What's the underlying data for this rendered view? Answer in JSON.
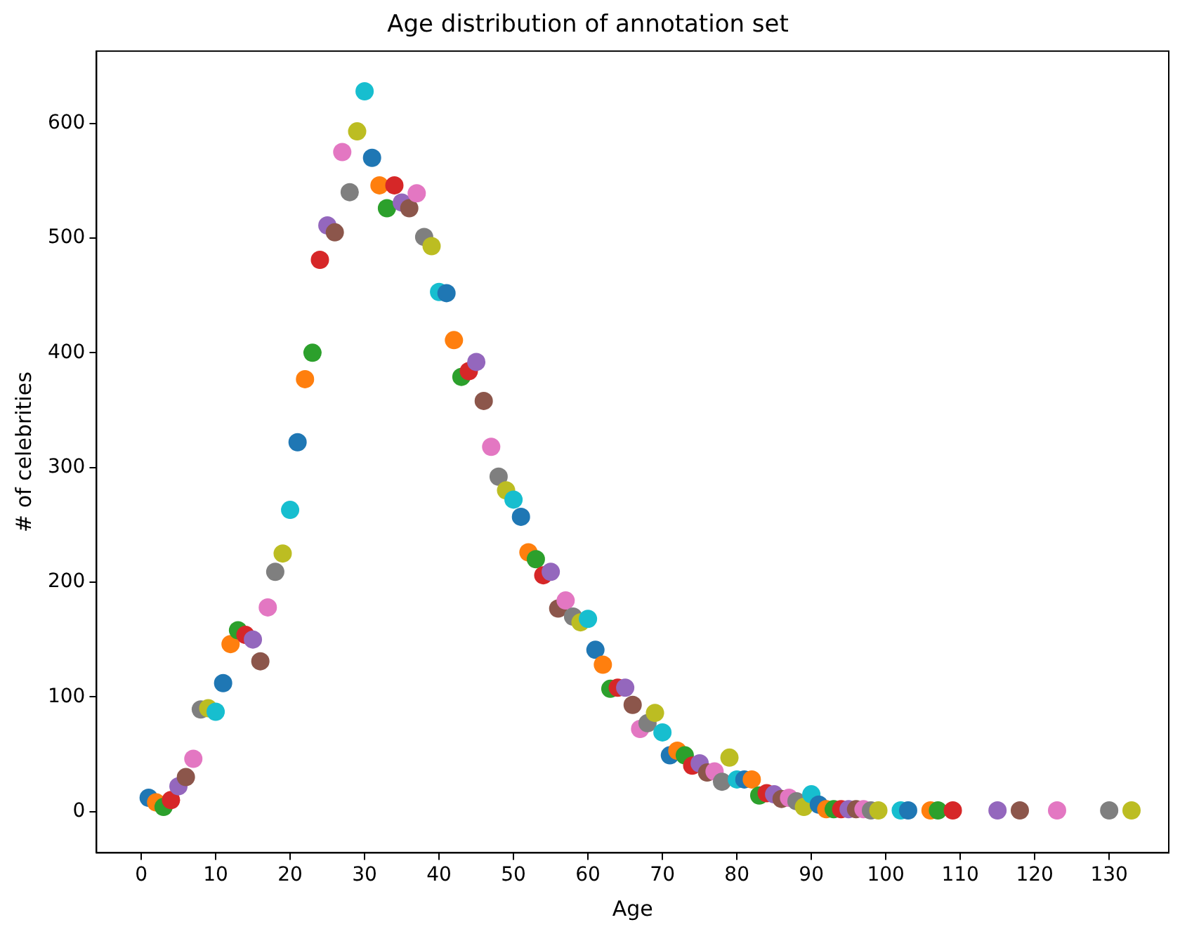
{
  "chart_data": {
    "type": "scatter",
    "title": "Age distribution of annotation set",
    "xlabel": "Age",
    "ylabel": "# of celebrities",
    "x": [
      1,
      2,
      3,
      4,
      5,
      6,
      7,
      8,
      9,
      10,
      11,
      12,
      13,
      14,
      15,
      16,
      17,
      18,
      19,
      20,
      21,
      22,
      23,
      24,
      25,
      26,
      27,
      28,
      29,
      30,
      31,
      32,
      33,
      34,
      35,
      36,
      37,
      38,
      39,
      40,
      41,
      42,
      43,
      44,
      45,
      46,
      47,
      48,
      49,
      50,
      51,
      52,
      53,
      54,
      55,
      56,
      57,
      58,
      59,
      60,
      61,
      62,
      63,
      64,
      65,
      66,
      67,
      68,
      69,
      70,
      71,
      72,
      73,
      74,
      75,
      76,
      77,
      78,
      79,
      80,
      81,
      82,
      83,
      84,
      85,
      86,
      87,
      88,
      89,
      90,
      91,
      92,
      93,
      94,
      95,
      96,
      97,
      98,
      99,
      102,
      103,
      106,
      107,
      109,
      115,
      118,
      123,
      130,
      133
    ],
    "values": [
      12,
      8,
      4,
      10,
      22,
      30,
      46,
      89,
      90,
      87,
      112,
      146,
      158,
      154,
      150,
      131,
      178,
      209,
      225,
      263,
      322,
      377,
      400,
      481,
      511,
      505,
      575,
      540,
      593,
      628,
      570,
      546,
      526,
      546,
      531,
      526,
      539,
      501,
      493,
      453,
      452,
      411,
      379,
      384,
      392,
      358,
      318,
      292,
      280,
      272,
      257,
      226,
      220,
      206,
      209,
      177,
      184,
      170,
      165,
      168,
      141,
      128,
      107,
      108,
      108,
      93,
      72,
      77,
      86,
      69,
      49,
      53,
      49,
      40,
      42,
      34,
      35,
      26,
      47,
      28,
      28,
      28,
      14,
      16,
      15,
      11,
      12,
      9,
      4,
      15,
      6,
      2,
      2,
      2,
      2,
      2,
      2,
      1,
      1,
      1,
      1,
      1,
      1,
      1,
      1,
      1,
      1,
      1,
      1
    ],
    "colors": [
      "#1f77b4",
      "#ff7f0e",
      "#2ca02c",
      "#d62728",
      "#9467bd",
      "#8c564b",
      "#e377c2",
      "#7f7f7f",
      "#bcbd22",
      "#17becf",
      "#1f77b4",
      "#ff7f0e",
      "#2ca02c",
      "#d62728",
      "#9467bd",
      "#8c564b",
      "#e377c2",
      "#7f7f7f",
      "#bcbd22",
      "#17becf",
      "#1f77b4",
      "#ff7f0e",
      "#2ca02c",
      "#d62728",
      "#9467bd",
      "#8c564b",
      "#e377c2",
      "#7f7f7f",
      "#bcbd22",
      "#17becf",
      "#1f77b4",
      "#ff7f0e",
      "#2ca02c",
      "#d62728",
      "#9467bd",
      "#8c564b",
      "#e377c2",
      "#7f7f7f",
      "#bcbd22",
      "#17becf",
      "#1f77b4",
      "#ff7f0e",
      "#2ca02c",
      "#d62728",
      "#9467bd",
      "#8c564b",
      "#e377c2",
      "#7f7f7f",
      "#bcbd22",
      "#17becf",
      "#1f77b4",
      "#ff7f0e",
      "#2ca02c",
      "#d62728",
      "#9467bd",
      "#8c564b",
      "#e377c2",
      "#7f7f7f",
      "#bcbd22",
      "#17becf",
      "#1f77b4",
      "#ff7f0e",
      "#2ca02c",
      "#d62728",
      "#9467bd",
      "#8c564b",
      "#e377c2",
      "#7f7f7f",
      "#bcbd22",
      "#17becf",
      "#1f77b4",
      "#ff7f0e",
      "#2ca02c",
      "#d62728",
      "#9467bd",
      "#8c564b",
      "#e377c2",
      "#7f7f7f",
      "#bcbd22",
      "#17becf",
      "#1f77b4",
      "#ff7f0e",
      "#2ca02c",
      "#d62728",
      "#9467bd",
      "#8c564b",
      "#e377c2",
      "#7f7f7f",
      "#bcbd22",
      "#17becf",
      "#1f77b4",
      "#ff7f0e",
      "#2ca02c",
      "#d62728",
      "#9467bd",
      "#8c564b",
      "#e377c2",
      "#7f7f7f",
      "#bcbd22",
      "#17becf",
      "#1f77b4",
      "#ff7f0e",
      "#2ca02c",
      "#d62728",
      "#9467bd",
      "#8c564b",
      "#e377c2",
      "#7f7f7f",
      "#bcbd22"
    ],
    "xlim": [
      -6,
      138
    ],
    "ylim": [
      -36,
      663
    ],
    "xticks": [
      0,
      10,
      20,
      30,
      40,
      50,
      60,
      70,
      80,
      90,
      100,
      110,
      120,
      130
    ],
    "yticks": [
      0,
      100,
      200,
      300,
      400,
      500,
      600
    ],
    "marker": "circle",
    "grid": false,
    "legend": false
  }
}
